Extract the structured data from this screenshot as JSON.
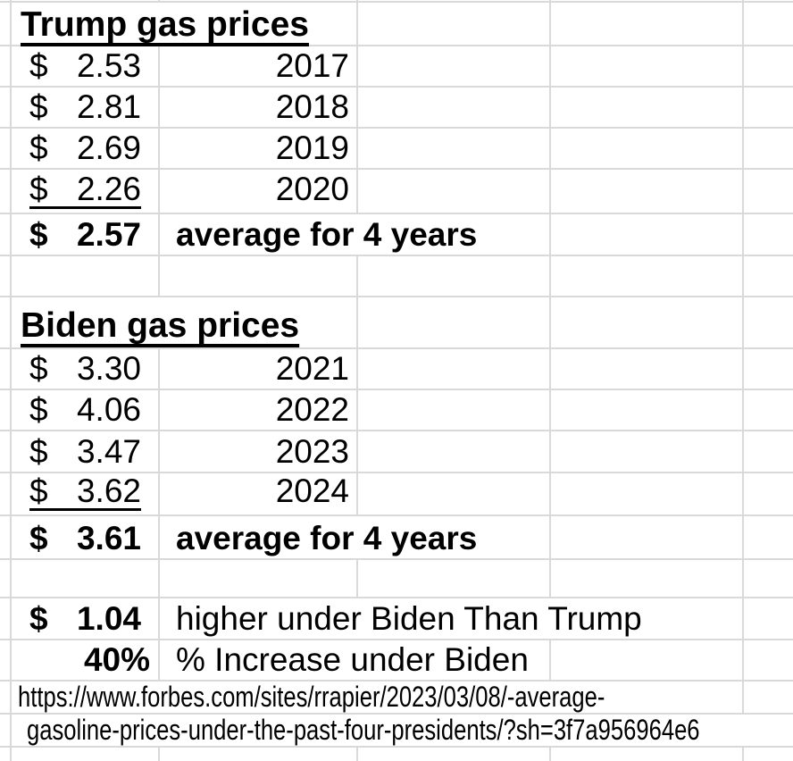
{
  "trump_section": {
    "title": "Trump gas prices",
    "rows": [
      {
        "currency": "$",
        "price": "2.53",
        "year": "2017"
      },
      {
        "currency": "$",
        "price": "2.81",
        "year": "2018"
      },
      {
        "currency": "$",
        "price": "2.69",
        "year": "2019"
      },
      {
        "currency": "$",
        "price": "2.26",
        "year": "2020"
      }
    ],
    "average": {
      "currency": "$",
      "price": "2.57",
      "label": "average for 4 years"
    }
  },
  "biden_section": {
    "title": "Biden gas prices",
    "rows": [
      {
        "currency": "$",
        "price": "3.30",
        "year": "2021"
      },
      {
        "currency": "$",
        "price": "4.06",
        "year": "2022"
      },
      {
        "currency": "$",
        "price": "3.47",
        "year": "2023"
      },
      {
        "currency": "$",
        "price": "3.62",
        "year": "2024"
      }
    ],
    "average": {
      "currency": "$",
      "price": "3.61",
      "label": "average for 4 years"
    }
  },
  "summary": {
    "difference": {
      "currency": "$",
      "price": "1.04",
      "label": "higher under Biden Than Trump"
    },
    "percent_increase": {
      "value": "40%",
      "label": "% Increase under Biden"
    }
  },
  "source": {
    "url_line_1": "https://www.forbes.com/sites/rrapier/2023/03/08/-average-",
    "url_line_2": "gasoline-prices-under-the-past-four-presidents/?sh=3f7a956964e6"
  },
  "colors": {
    "gridline": "#d9d9d9",
    "text": "#000000",
    "background": "#ffffff"
  }
}
